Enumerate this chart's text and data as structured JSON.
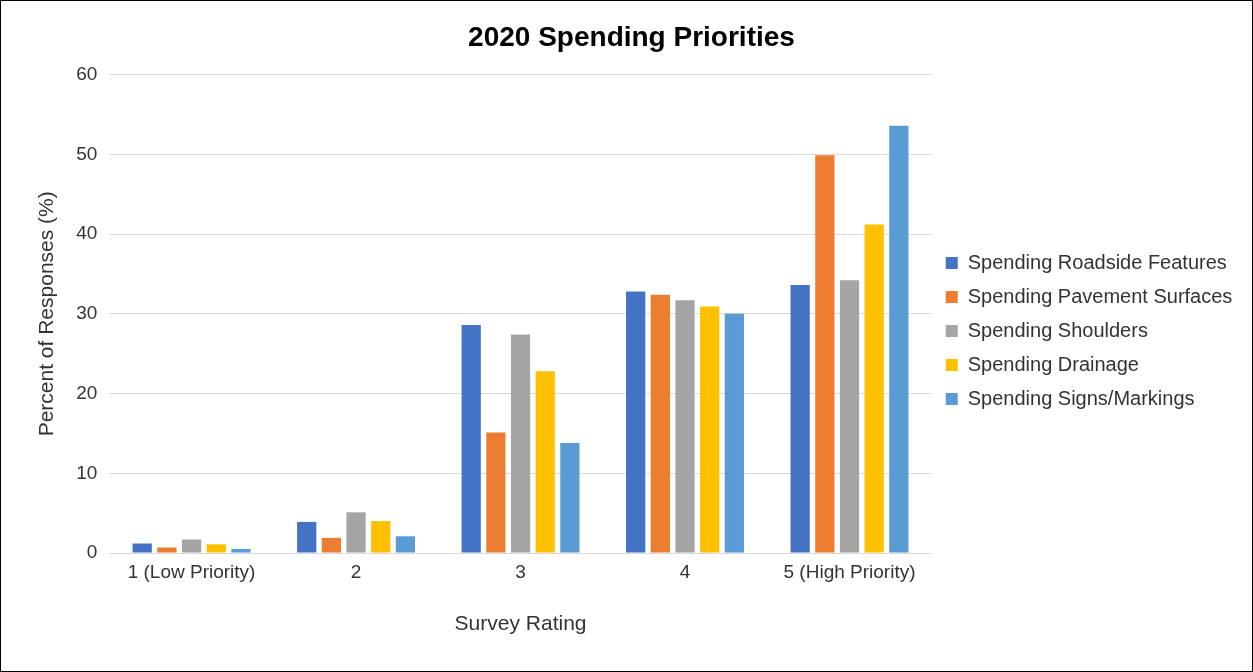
{
  "chart_data": {
    "type": "bar",
    "title": "2020 Spending Priorities",
    "xlabel": "Survey Rating",
    "ylabel": "Percent of Responses (%)",
    "categories": [
      "1 (Low Priority)",
      "2",
      "3",
      "4",
      "5 (High Priority)"
    ],
    "series": [
      {
        "name": "Spending Roadside Features",
        "color": "#4472c4",
        "values": [
          1.2,
          3.9,
          28.6,
          32.8,
          33.6
        ]
      },
      {
        "name": "Spending Pavement Surfaces",
        "color": "#ed7d31",
        "values": [
          0.7,
          1.9,
          15.1,
          32.4,
          49.9
        ]
      },
      {
        "name": "Spending Shoulders",
        "color": "#a5a5a5",
        "values": [
          1.7,
          5.1,
          27.4,
          31.7,
          34.2
        ]
      },
      {
        "name": "Spending Drainage",
        "color": "#ffc000",
        "values": [
          1.1,
          4.0,
          22.8,
          30.9,
          41.2
        ]
      },
      {
        "name": "Spending Signs/Markings",
        "color": "#5b9bd5",
        "values": [
          0.5,
          2.1,
          13.8,
          30.0,
          53.6
        ]
      }
    ],
    "ylim": [
      0,
      60
    ],
    "yticks": [
      0,
      10,
      20,
      30,
      40,
      50,
      60
    ],
    "grid": "y",
    "legend": "right"
  }
}
